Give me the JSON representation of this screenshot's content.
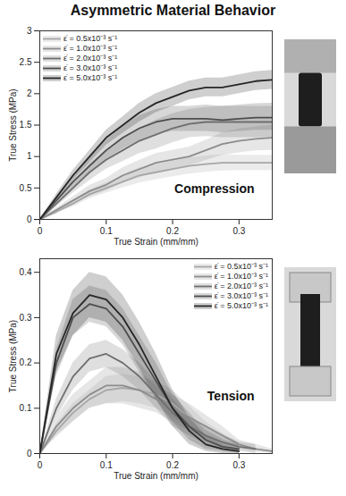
{
  "title": "Asymmetric Material Behavior",
  "chart_data": [
    {
      "type": "line",
      "annotations": [
        "Compression"
      ],
      "x_label": "True Strain (mm/mm)",
      "y_label": "True Stress (MPa)",
      "xlim": [
        0,
        0.35
      ],
      "xticks": [
        0,
        0.1,
        0.2,
        0.3
      ],
      "ylim": [
        0,
        3
      ],
      "yticks": [
        0,
        0.5,
        1,
        1.5,
        2,
        2.5,
        3
      ],
      "legend": "top-left",
      "x": [
        0,
        0.025,
        0.05,
        0.075,
        0.1,
        0.125,
        0.15,
        0.175,
        0.2,
        0.225,
        0.25,
        0.275,
        0.3,
        0.325,
        0.35
      ],
      "series": [
        {
          "name": "ε̇ = 0.5x10⁻³ s⁻¹",
          "color": "#a6a6a6",
          "values": [
            0,
            0.12,
            0.25,
            0.4,
            0.5,
            0.6,
            0.7,
            0.75,
            0.8,
            0.85,
            0.88,
            0.9,
            0.9,
            0.9,
            0.9
          ],
          "lower": [
            0,
            0.1,
            0.2,
            0.33,
            0.42,
            0.5,
            0.58,
            0.63,
            0.68,
            0.72,
            0.75,
            0.77,
            0.78,
            0.78,
            0.78
          ],
          "upper": [
            0,
            0.14,
            0.3,
            0.47,
            0.58,
            0.7,
            0.82,
            0.87,
            0.92,
            0.98,
            1.01,
            1.03,
            1.02,
            1.02,
            1.02
          ]
        },
        {
          "name": "ε̇ = 1.0x10⁻³ s⁻¹",
          "color": "#8c8c8c",
          "values": [
            0,
            0.15,
            0.3,
            0.45,
            0.55,
            0.7,
            0.8,
            0.9,
            0.95,
            1.0,
            1.1,
            1.2,
            1.25,
            1.28,
            1.3
          ],
          "lower": [
            0,
            0.12,
            0.24,
            0.36,
            0.45,
            0.58,
            0.66,
            0.75,
            0.8,
            0.85,
            0.94,
            1.02,
            1.06,
            1.09,
            1.1
          ],
          "upper": [
            0,
            0.18,
            0.36,
            0.54,
            0.65,
            0.82,
            0.94,
            1.05,
            1.1,
            1.15,
            1.26,
            1.38,
            1.44,
            1.47,
            1.5
          ]
        },
        {
          "name": "ε̇ = 2.0x10⁻³ s⁻¹",
          "color": "#6e6e6e",
          "values": [
            0,
            0.25,
            0.5,
            0.75,
            0.95,
            1.1,
            1.25,
            1.35,
            1.45,
            1.52,
            1.55,
            1.55,
            1.55,
            1.55,
            1.55
          ],
          "lower": [
            0,
            0.2,
            0.42,
            0.62,
            0.8,
            0.92,
            1.05,
            1.12,
            1.22,
            1.3,
            1.32,
            1.3,
            1.3,
            1.3,
            1.3
          ],
          "upper": [
            0,
            0.3,
            0.58,
            0.88,
            1.1,
            1.28,
            1.45,
            1.58,
            1.68,
            1.75,
            1.78,
            1.8,
            1.8,
            1.8,
            1.8
          ]
        },
        {
          "name": "ε̇ = 3.0x10⁻³ s⁻¹",
          "color": "#4d4d4d",
          "values": [
            0,
            0.3,
            0.6,
            0.85,
            1.1,
            1.3,
            1.45,
            1.55,
            1.6,
            1.6,
            1.6,
            1.58,
            1.6,
            1.62,
            1.62
          ],
          "lower": [
            0,
            0.25,
            0.5,
            0.72,
            0.95,
            1.12,
            1.25,
            1.35,
            1.4,
            1.4,
            1.4,
            1.38,
            1.4,
            1.42,
            1.42
          ],
          "upper": [
            0,
            0.35,
            0.7,
            0.98,
            1.25,
            1.48,
            1.65,
            1.75,
            1.8,
            1.8,
            1.82,
            1.8,
            1.82,
            1.84,
            1.85
          ]
        },
        {
          "name": "ε̇ = 5.0x10⁻³ s⁻¹",
          "color": "#262626",
          "values": [
            0,
            0.35,
            0.7,
            1.0,
            1.3,
            1.5,
            1.7,
            1.85,
            1.95,
            2.05,
            2.1,
            2.1,
            2.15,
            2.2,
            2.22
          ],
          "lower": [
            0,
            0.3,
            0.62,
            0.9,
            1.18,
            1.37,
            1.55,
            1.7,
            1.8,
            1.9,
            1.95,
            1.95,
            2.0,
            2.05,
            2.07
          ],
          "upper": [
            0,
            0.4,
            0.78,
            1.1,
            1.42,
            1.63,
            1.85,
            2.0,
            2.1,
            2.2,
            2.25,
            2.25,
            2.3,
            2.35,
            2.37
          ]
        }
      ]
    },
    {
      "type": "line",
      "annotations": [
        "Tension"
      ],
      "x_label": "True Strain (mm/mm)",
      "y_label": "True Stress (MPa)",
      "xlim": [
        0,
        0.35
      ],
      "xticks": [
        0,
        0.1,
        0.2,
        0.3
      ],
      "ylim": [
        0,
        0.43
      ],
      "yticks": [
        0,
        0.1,
        0.2,
        0.3,
        0.4
      ],
      "legend": "top-right",
      "x": [
        0,
        0.025,
        0.05,
        0.075,
        0.1,
        0.125,
        0.15,
        0.175,
        0.2,
        0.225,
        0.25,
        0.275,
        0.3,
        0.325,
        0.35
      ],
      "series": [
        {
          "name": "ε̇ = 0.5x10⁻³ s⁻¹",
          "color": "#a6a6a6",
          "values": [
            0,
            0.05,
            0.09,
            0.12,
            0.14,
            0.145,
            0.14,
            0.13,
            0.11,
            0.08,
            0.05,
            0.03,
            0.015,
            null,
            null
          ],
          "lower": [
            0,
            0.035,
            0.07,
            0.1,
            0.11,
            0.115,
            0.11,
            0.1,
            0.08,
            0.055,
            0.03,
            0.015,
            0.005,
            null,
            null
          ],
          "upper": [
            0,
            0.065,
            0.11,
            0.14,
            0.17,
            0.175,
            0.17,
            0.16,
            0.14,
            0.105,
            0.07,
            0.045,
            0.025,
            null,
            null
          ]
        },
        {
          "name": "ε̇ = 1.0x10⁻³ s⁻¹",
          "color": "#8c8c8c",
          "values": [
            0,
            0.06,
            0.1,
            0.13,
            0.15,
            0.15,
            0.14,
            0.12,
            0.1,
            0.08,
            0.06,
            0.04,
            0.02,
            0.01,
            0.005
          ],
          "lower": [
            0,
            0.04,
            0.07,
            0.1,
            0.11,
            0.11,
            0.1,
            0.09,
            0.07,
            0.05,
            0.035,
            0.02,
            0.01,
            0.003,
            0
          ],
          "upper": [
            0,
            0.08,
            0.13,
            0.16,
            0.19,
            0.19,
            0.18,
            0.15,
            0.13,
            0.11,
            0.085,
            0.06,
            0.03,
            0.02,
            0.01
          ]
        },
        {
          "name": "ε̇ = 2.0x10⁻³ s⁻¹",
          "color": "#6e6e6e",
          "values": [
            0,
            0.1,
            0.17,
            0.21,
            0.22,
            0.2,
            0.17,
            0.13,
            0.09,
            0.06,
            0.04,
            0.025,
            0.015,
            0.01,
            null
          ],
          "lower": [
            0,
            0.08,
            0.14,
            0.18,
            0.19,
            0.17,
            0.14,
            0.1,
            0.06,
            0.04,
            0.02,
            0.01,
            0.005,
            0,
            null
          ],
          "upper": [
            0,
            0.12,
            0.2,
            0.24,
            0.25,
            0.23,
            0.2,
            0.16,
            0.12,
            0.08,
            0.06,
            0.04,
            0.025,
            0.02,
            null
          ]
        },
        {
          "name": "ε̇ = 3.0x10⁻³ s⁻¹",
          "color": "#4d4d4d",
          "values": [
            0,
            0.2,
            0.3,
            0.33,
            0.32,
            0.28,
            0.22,
            0.16,
            0.1,
            0.06,
            0.03,
            0.015,
            0.01,
            null,
            null
          ],
          "lower": [
            0,
            0.17,
            0.26,
            0.29,
            0.28,
            0.24,
            0.18,
            0.12,
            0.07,
            0.03,
            0.01,
            0.005,
            0,
            null,
            null
          ],
          "upper": [
            0,
            0.23,
            0.34,
            0.37,
            0.36,
            0.32,
            0.26,
            0.2,
            0.13,
            0.09,
            0.05,
            0.03,
            0.02,
            null,
            null
          ]
        },
        {
          "name": "ε̇ = 5.0x10⁻³ s⁻¹",
          "color": "#262626",
          "values": [
            0,
            0.22,
            0.31,
            0.35,
            0.34,
            0.3,
            0.24,
            0.17,
            0.1,
            0.05,
            0.02,
            0.01,
            0.005,
            null,
            null
          ],
          "lower": [
            0,
            0.18,
            0.26,
            0.3,
            0.29,
            0.25,
            0.19,
            0.12,
            0.06,
            0.02,
            0.005,
            0,
            0,
            null,
            null
          ],
          "upper": [
            0,
            0.26,
            0.36,
            0.4,
            0.39,
            0.35,
            0.29,
            0.22,
            0.14,
            0.08,
            0.04,
            0.02,
            0.01,
            null,
            null
          ]
        }
      ]
    }
  ]
}
